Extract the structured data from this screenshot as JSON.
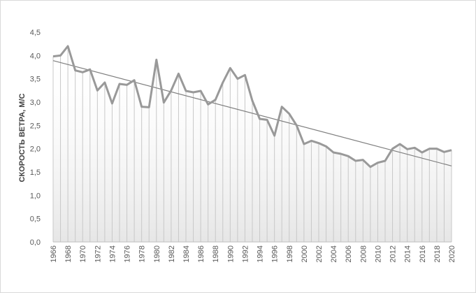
{
  "chart_data": {
    "type": "line",
    "title": "",
    "xlabel": "",
    "ylabel": "СКОРОСТЬ ВЕТРА, М/С",
    "ylim": [
      0,
      4.5
    ],
    "y_ticks": [
      "0,0",
      "0,5",
      "1,0",
      "1,5",
      "2,0",
      "2,5",
      "3,0",
      "3,5",
      "4,0",
      "4,5"
    ],
    "x_ticks": [
      "1966",
      "1968",
      "1970",
      "1972",
      "1974",
      "1976",
      "1978",
      "1980",
      "1982",
      "1984",
      "1986",
      "1988",
      "1990",
      "1992",
      "1994",
      "1996",
      "1998",
      "2000",
      "2002",
      "2004",
      "2006",
      "2008",
      "2010",
      "2012",
      "2014",
      "2016",
      "2018",
      "2020"
    ],
    "x": [
      1966,
      1967,
      1968,
      1969,
      1970,
      1971,
      1972,
      1973,
      1974,
      1975,
      1976,
      1977,
      1978,
      1979,
      1980,
      1981,
      1982,
      1983,
      1984,
      1985,
      1986,
      1987,
      1988,
      1989,
      1990,
      1991,
      1992,
      1993,
      1994,
      1995,
      1996,
      1997,
      1998,
      1999,
      2000,
      2001,
      2002,
      2003,
      2004,
      2005,
      2006,
      2007,
      2008,
      2009,
      2010,
      2011,
      2012,
      2013,
      2014,
      2015,
      2016,
      2017,
      2018,
      2019,
      2020
    ],
    "series": [
      {
        "values": [
          3.98,
          4.0,
          4.2,
          3.68,
          3.64,
          3.7,
          3.25,
          3.42,
          2.97,
          3.39,
          3.37,
          3.47,
          2.9,
          2.89,
          3.91,
          2.99,
          3.25,
          3.61,
          3.24,
          3.21,
          3.24,
          2.95,
          3.05,
          3.42,
          3.73,
          3.5,
          3.58,
          3.03,
          2.64,
          2.62,
          2.28,
          2.9,
          2.75,
          2.5,
          2.1,
          2.17,
          2.12,
          2.05,
          1.92,
          1.89,
          1.84,
          1.74,
          1.76,
          1.61,
          1.7,
          1.74,
          2.0,
          2.1,
          1.99,
          2.02,
          1.92,
          2.0,
          2.0,
          1.93,
          1.97
        ]
      }
    ],
    "trendline": {
      "start": [
        1966,
        3.89
      ],
      "end": [
        2020,
        1.63
      ]
    },
    "grid": false,
    "drop_lines": true,
    "colors": {
      "line": "#999999",
      "trend": "#7f7f7f",
      "drop": "#c8c8c8",
      "axis": "#bfbfbf",
      "area": "#ededed"
    }
  }
}
